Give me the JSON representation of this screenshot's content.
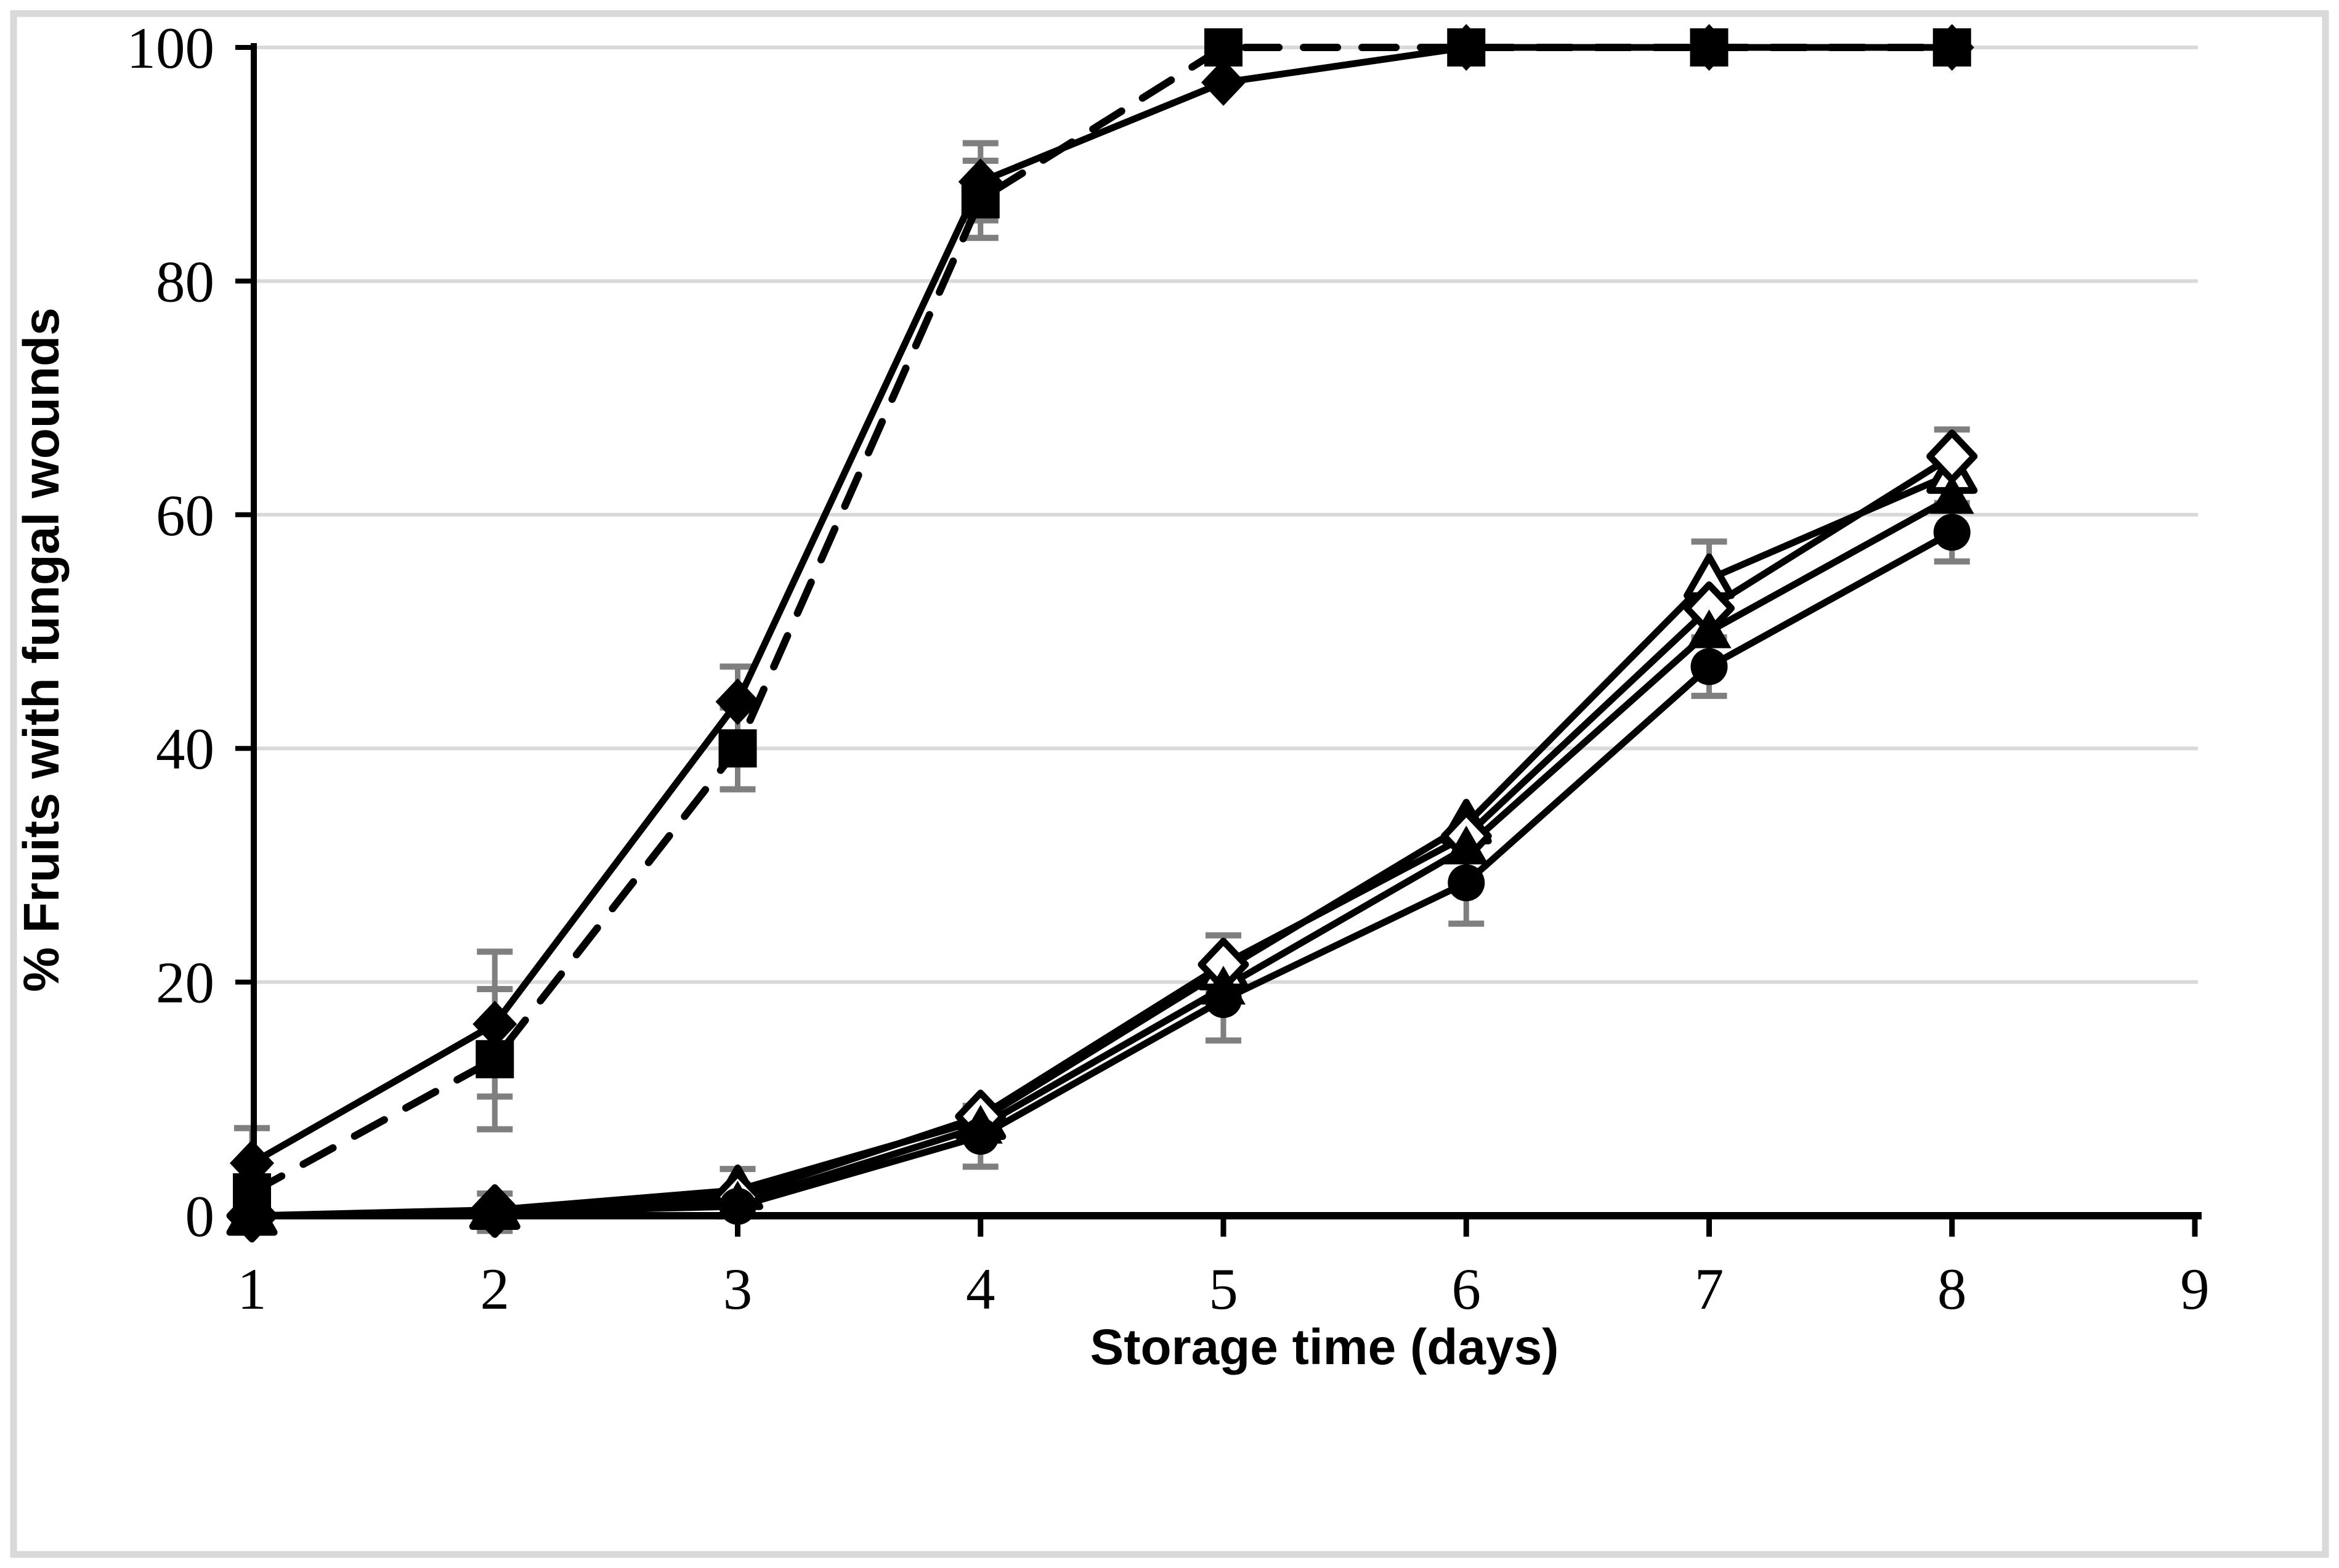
{
  "figure": {
    "background": "#ffffff",
    "border_color": "#d9d9d9",
    "gridline_color": "#d9d9d9",
    "axis_color": "#000000",
    "error_bar_color": "#7f7f7f",
    "series_color": "#000000"
  },
  "chart_data": {
    "type": "line",
    "title": "",
    "xlabel": "Storage time (days)",
    "ylabel": "% Fruits with fungal wounds",
    "x": [
      1,
      2,
      3,
      4,
      5,
      6,
      7,
      8
    ],
    "x_ticks": [
      "1",
      "2",
      "3",
      "4",
      "5",
      "6",
      "7",
      "8",
      "9"
    ],
    "y_ticks": [
      "0",
      "20",
      "40",
      "60",
      "80",
      "100"
    ],
    "y_tick_values": [
      0,
      20,
      40,
      60,
      80,
      100
    ],
    "xlim": [
      1,
      9
    ],
    "ylim": [
      0,
      100
    ],
    "grid": "horizontal-only",
    "legend": "none",
    "series": [
      {
        "name": "closed-diamond-solid",
        "marker": "diamond",
        "fill_style": "filled",
        "line_style": "solid",
        "values": [
          4.5,
          16.4,
          44,
          88.5,
          97,
          100,
          100,
          100
        ],
        "errors": [
          3,
          6.2,
          3,
          3.3,
          0,
          0,
          0,
          0
        ]
      },
      {
        "name": "closed-square-dashed",
        "marker": "square",
        "fill_style": "filled",
        "line_style": "dashed",
        "values": [
          2,
          13.4,
          40,
          87,
          100,
          100,
          100,
          100
        ],
        "errors": [
          2.5,
          6,
          3.5,
          3.3,
          0,
          0,
          0,
          0
        ]
      },
      {
        "name": "open-triangle-solid",
        "marker": "triangle",
        "fill_style": "open",
        "line_style": "solid",
        "values": [
          0,
          0.5,
          2.2,
          8.2,
          21,
          33.5,
          54.5,
          63.5
        ],
        "errors": [
          0,
          0,
          1.8,
          0,
          0,
          0,
          3.2,
          0
        ]
      },
      {
        "name": "open-diamond-solid",
        "marker": "diamond",
        "fill_style": "open",
        "line_style": "solid",
        "values": [
          0,
          0.4,
          1.6,
          8.5,
          21.5,
          32.5,
          52,
          65
        ],
        "errors": [
          0,
          0,
          0,
          0,
          2.5,
          0,
          0,
          2.3
        ]
      },
      {
        "name": "closed-triangle-solid",
        "marker": "triangle",
        "fill_style": "filled",
        "line_style": "solid",
        "values": [
          0,
          0.3,
          1.1,
          7.6,
          19.5,
          31.5,
          50,
          61.5
        ],
        "errors": [
          0,
          0,
          0,
          0,
          0,
          0,
          0,
          0
        ]
      },
      {
        "name": "closed-circle-solid",
        "marker": "circle",
        "fill_style": "filled",
        "line_style": "solid",
        "values": [
          0,
          0.3,
          0.8,
          6.8,
          18.5,
          28.5,
          47,
          58.5
        ],
        "errors": [
          0,
          1.6,
          0,
          2.6,
          3.5,
          3.5,
          2.5,
          2.5
        ]
      }
    ]
  }
}
